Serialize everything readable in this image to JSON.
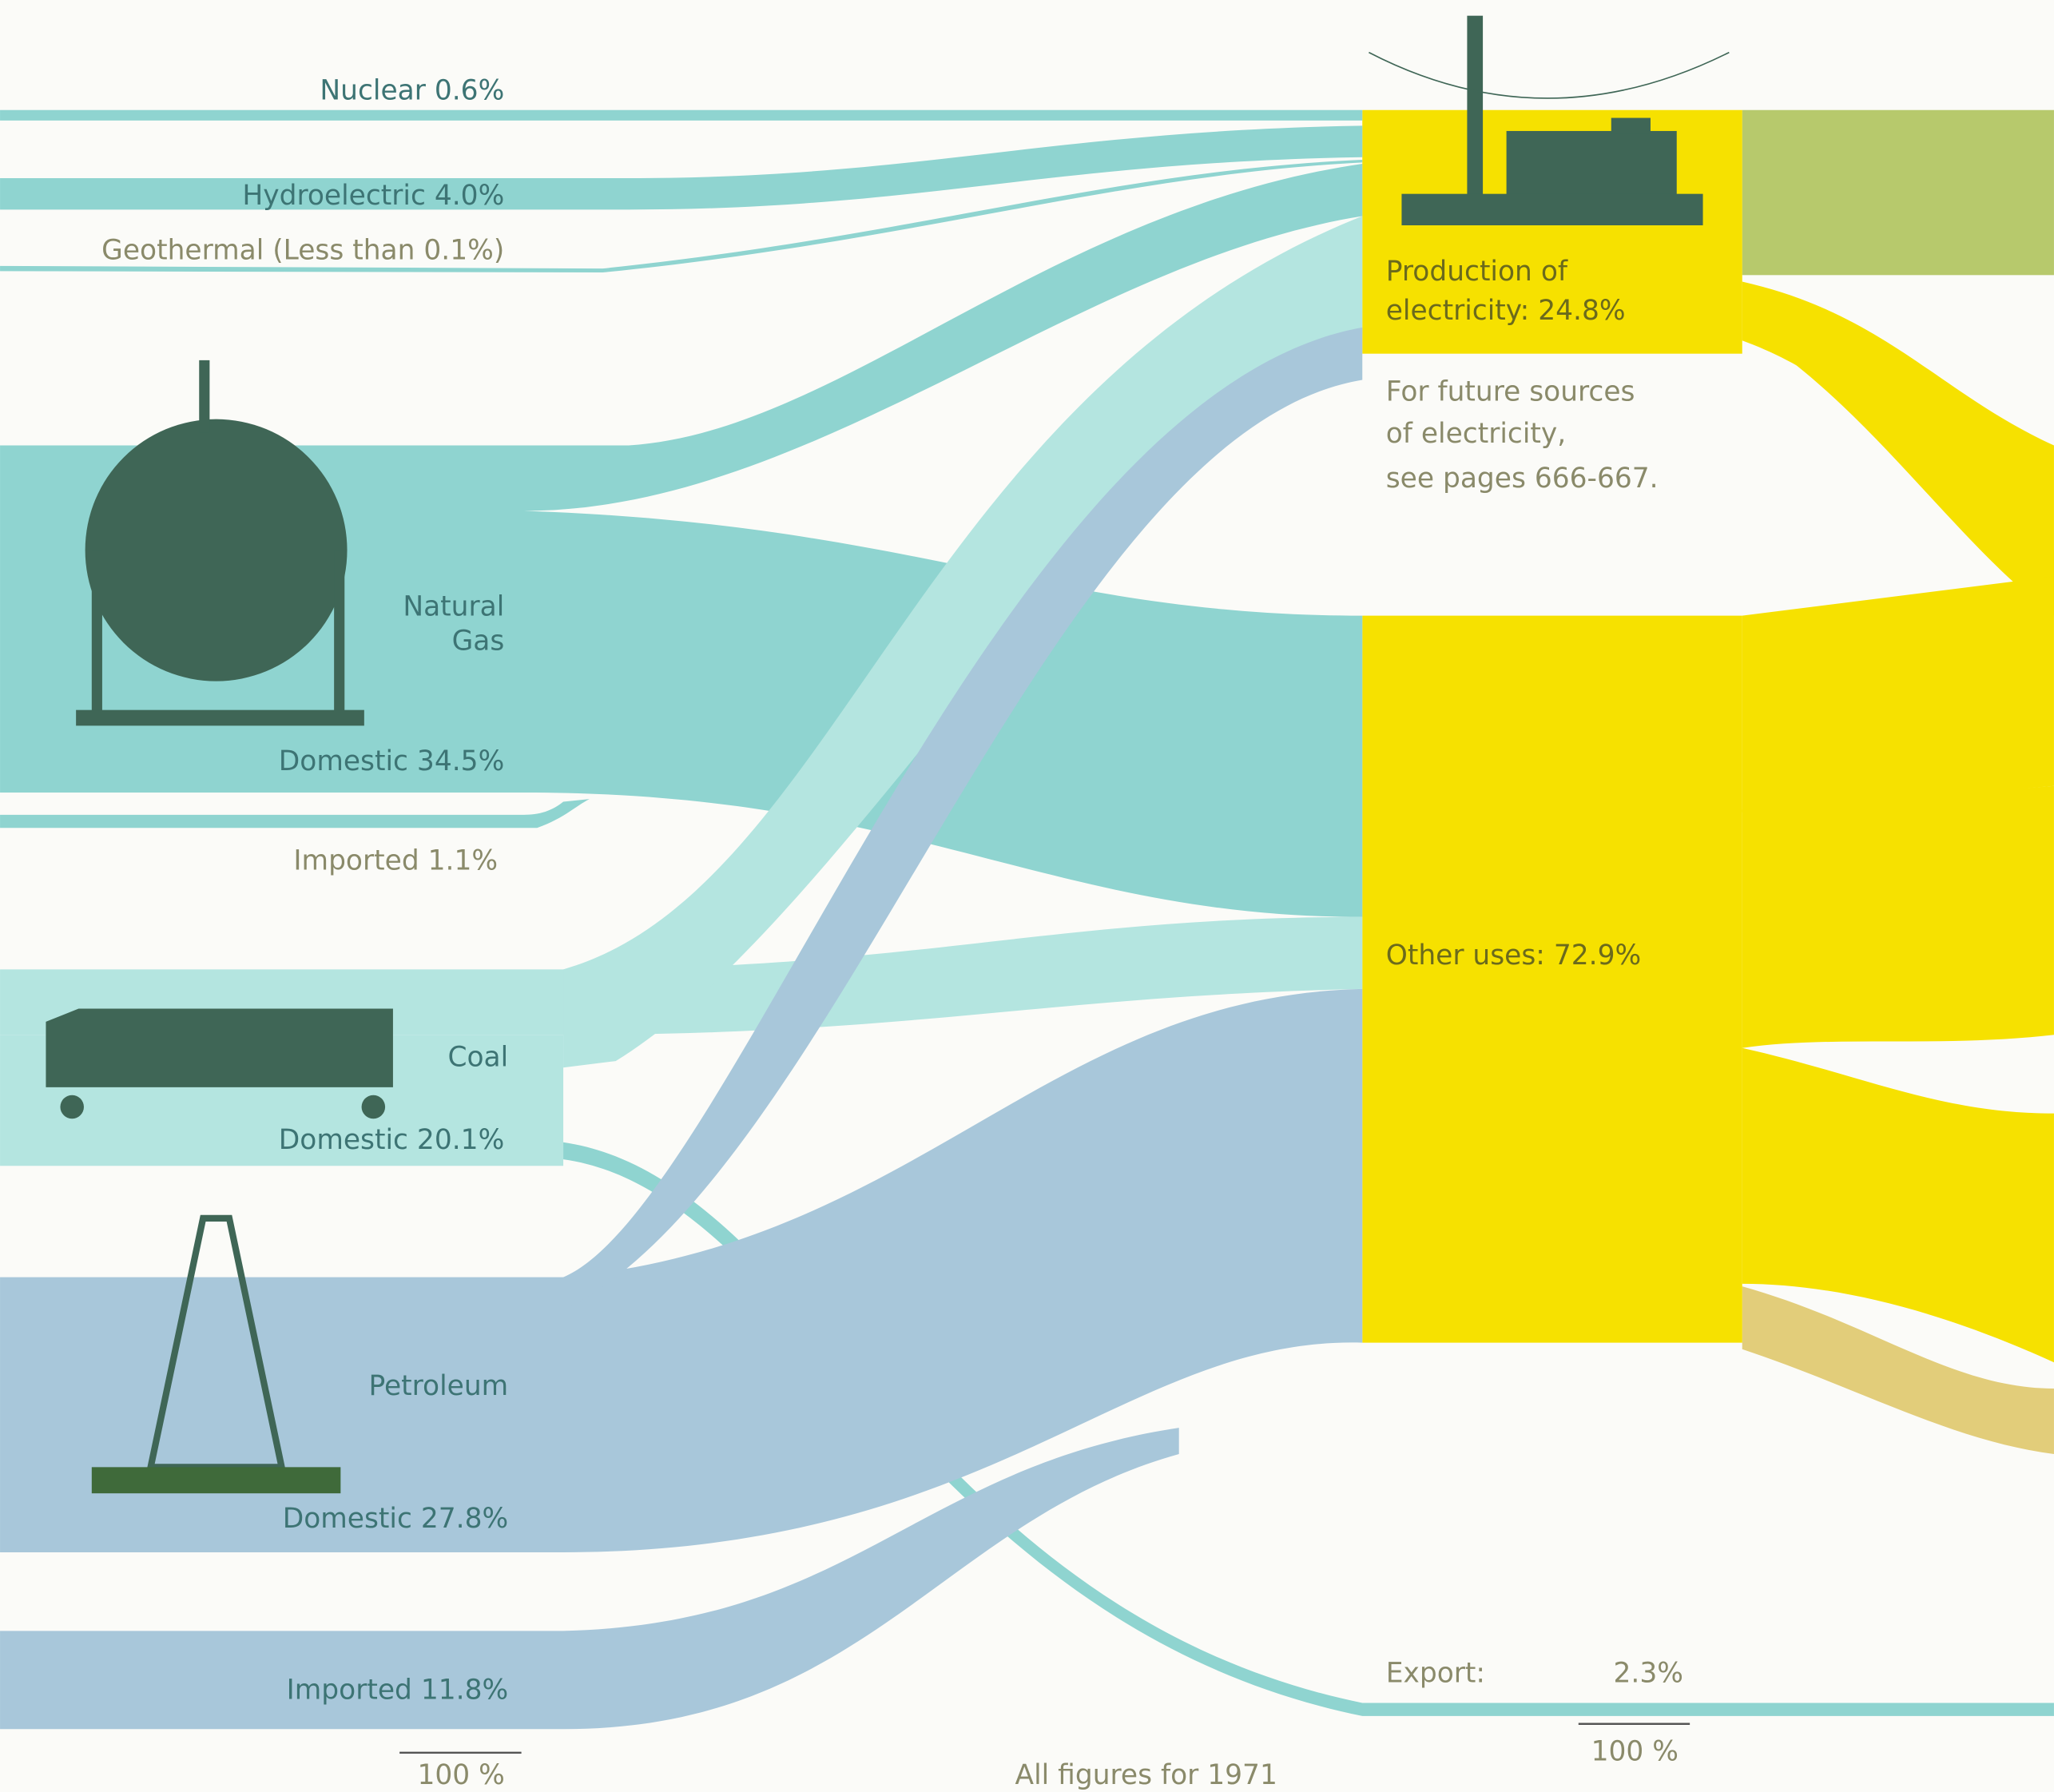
{
  "sources": {
    "nuclear": {
      "name": "Nuclear",
      "value": "0.6%"
    },
    "hydroelectric": {
      "name": "Hydroelectric",
      "value": "4.0%"
    },
    "geothermal": {
      "name": "Geothermal",
      "value": "(Less than 0.1%)"
    },
    "natural_gas": {
      "name_lines": [
        "Natural",
        "Gas"
      ],
      "domestic": {
        "name": "Domestic",
        "value": "34.5%"
      },
      "imported": {
        "name": "Imported",
        "value": "1.1%"
      }
    },
    "coal": {
      "name": "Coal",
      "domestic": {
        "name": "Domestic",
        "value": "20.1%"
      }
    },
    "petroleum": {
      "name": "Petroleum",
      "domestic": {
        "name": "Domestic",
        "value": "27.8%"
      },
      "imported": {
        "name": "Imported",
        "value": "11.8%"
      }
    },
    "total": "100 %"
  },
  "uses": {
    "electricity": {
      "lines": [
        "Production of",
        "electricity:"
      ],
      "value": "24.8%"
    },
    "note": [
      "For future sources",
      "of electricity,",
      "see pages 666-667."
    ],
    "other": {
      "name": "Other uses:",
      "value": "72.9%"
    },
    "export": {
      "name": "Export:",
      "value": "2.3%"
    },
    "total": "100 %"
  },
  "footer": "All figures for 1971"
}
